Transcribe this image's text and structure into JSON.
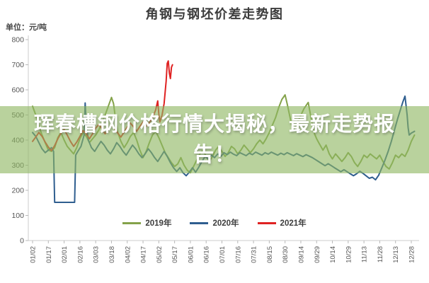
{
  "header": {
    "title": "角钢与钢坯价差走势图",
    "unit_label": "单位：元/吨"
  },
  "overlay_banner": {
    "lines": [
      "珲春槽钢价格行情大揭秘，最新走势报",
      "告！"
    ],
    "bg": "rgba(142,182,97,0.62)",
    "text_color": "#ffffff"
  },
  "chart_data": {
    "type": "line",
    "title": "角钢与钢坯价差走势图",
    "ylabel": "单位：元/吨",
    "ylim": [
      0,
      800
    ],
    "yticks": [
      0,
      100,
      200,
      300,
      400,
      500,
      600,
      700,
      800
    ],
    "xtick_labels": [
      "01/02",
      "01/17",
      "02/01",
      "02/16",
      "03/03",
      "03/18",
      "04/02",
      "04/17",
      "05/02",
      "05/17",
      "06/01",
      "06/16",
      "07/01",
      "07/16",
      "07/31",
      "08/15",
      "08/30",
      "09/14",
      "09/29",
      "10/14",
      "10/29",
      "11/13",
      "11/28",
      "12/13",
      "12/28"
    ],
    "xtick_spacing_days": 15,
    "x_range_days": [
      0,
      363
    ],
    "grid": false,
    "legend_position": "bottom",
    "series": [
      {
        "name": "2019年",
        "color": "#84a24a",
        "points": [
          [
            0,
            535
          ],
          [
            3,
            500
          ],
          [
            6,
            455
          ],
          [
            9,
            420
          ],
          [
            12,
            390
          ],
          [
            15,
            360
          ],
          [
            18,
            355
          ],
          [
            21,
            370
          ],
          [
            24,
            410
          ],
          [
            27,
            430
          ],
          [
            30,
            400
          ],
          [
            33,
            375
          ],
          [
            36,
            360
          ],
          [
            39,
            345
          ],
          [
            42,
            370
          ],
          [
            45,
            405
          ],
          [
            48,
            430
          ],
          [
            51,
            415
          ],
          [
            54,
            390
          ],
          [
            57,
            405
          ],
          [
            60,
            420
          ],
          [
            63,
            440
          ],
          [
            66,
            470
          ],
          [
            69,
            500
          ],
          [
            72,
            535
          ],
          [
            75,
            570
          ],
          [
            77,
            545
          ],
          [
            79,
            480
          ],
          [
            81,
            430
          ],
          [
            84,
            395
          ],
          [
            87,
            370
          ],
          [
            90,
            390
          ],
          [
            93,
            415
          ],
          [
            96,
            430
          ],
          [
            99,
            400
          ],
          [
            102,
            360
          ],
          [
            105,
            330
          ],
          [
            108,
            355
          ],
          [
            111,
            390
          ],
          [
            114,
            420
          ],
          [
            117,
            435
          ],
          [
            120,
            410
          ],
          [
            123,
            380
          ],
          [
            126,
            350
          ],
          [
            129,
            330
          ],
          [
            132,
            310
          ],
          [
            135,
            295
          ],
          [
            138,
            305
          ],
          [
            141,
            330
          ],
          [
            144,
            300
          ],
          [
            147,
            280
          ],
          [
            150,
            270
          ],
          [
            153,
            295
          ],
          [
            156,
            320
          ],
          [
            159,
            345
          ],
          [
            162,
            360
          ],
          [
            165,
            335
          ],
          [
            168,
            315
          ],
          [
            171,
            335
          ],
          [
            174,
            360
          ],
          [
            177,
            375
          ],
          [
            180,
            355
          ],
          [
            183,
            335
          ],
          [
            186,
            350
          ],
          [
            189,
            375
          ],
          [
            192,
            365
          ],
          [
            195,
            345
          ],
          [
            198,
            360
          ],
          [
            201,
            380
          ],
          [
            204,
            365
          ],
          [
            207,
            350
          ],
          [
            210,
            365
          ],
          [
            213,
            385
          ],
          [
            216,
            400
          ],
          [
            219,
            385
          ],
          [
            222,
            405
          ],
          [
            225,
            430
          ],
          [
            228,
            460
          ],
          [
            231,
            490
          ],
          [
            234,
            530
          ],
          [
            237,
            562
          ],
          [
            240,
            580
          ],
          [
            242,
            545
          ],
          [
            244,
            505
          ],
          [
            246,
            465
          ],
          [
            248,
            440
          ],
          [
            250,
            455
          ],
          [
            254,
            490
          ],
          [
            258,
            525
          ],
          [
            262,
            550
          ],
          [
            264,
            505
          ],
          [
            266,
            460
          ],
          [
            268,
            425
          ],
          [
            270,
            405
          ],
          [
            272,
            390
          ],
          [
            274,
            375
          ],
          [
            276,
            360
          ],
          [
            279,
            380
          ],
          [
            282,
            345
          ],
          [
            285,
            325
          ],
          [
            288,
            345
          ],
          [
            291,
            330
          ],
          [
            294,
            315
          ],
          [
            297,
            330
          ],
          [
            300,
            350
          ],
          [
            303,
            335
          ],
          [
            306,
            310
          ],
          [
            309,
            295
          ],
          [
            312,
            315
          ],
          [
            315,
            340
          ],
          [
            318,
            330
          ],
          [
            321,
            345
          ],
          [
            324,
            335
          ],
          [
            327,
            325
          ],
          [
            330,
            340
          ],
          [
            333,
            315
          ],
          [
            336,
            295
          ],
          [
            339,
            285
          ],
          [
            342,
            310
          ],
          [
            345,
            340
          ],
          [
            348,
            330
          ],
          [
            351,
            345
          ],
          [
            354,
            335
          ],
          [
            357,
            360
          ],
          [
            360,
            395
          ],
          [
            363,
            420
          ]
        ]
      },
      {
        "name": "2020年",
        "color": "#2f5e8f",
        "points": [
          [
            0,
            430
          ],
          [
            3,
            415
          ],
          [
            6,
            390
          ],
          [
            9,
            365
          ],
          [
            12,
            350
          ],
          [
            15,
            360
          ],
          [
            18,
            370
          ],
          [
            20,
            355
          ],
          [
            21,
            152
          ],
          [
            40,
            152
          ],
          [
            41,
            340
          ],
          [
            43,
            355
          ],
          [
            46,
            375
          ],
          [
            49,
            420
          ],
          [
            50,
            548
          ],
          [
            51,
            470
          ],
          [
            53,
            400
          ],
          [
            56,
            370
          ],
          [
            59,
            355
          ],
          [
            62,
            375
          ],
          [
            65,
            395
          ],
          [
            68,
            380
          ],
          [
            71,
            360
          ],
          [
            74,
            345
          ],
          [
            77,
            365
          ],
          [
            80,
            390
          ],
          [
            83,
            375
          ],
          [
            86,
            355
          ],
          [
            89,
            340
          ],
          [
            92,
            360
          ],
          [
            95,
            380
          ],
          [
            98,
            365
          ],
          [
            101,
            345
          ],
          [
            104,
            330
          ],
          [
            107,
            345
          ],
          [
            110,
            365
          ],
          [
            113,
            350
          ],
          [
            116,
            330
          ],
          [
            119,
            315
          ],
          [
            122,
            335
          ],
          [
            125,
            355
          ],
          [
            128,
            335
          ],
          [
            131,
            310
          ],
          [
            134,
            290
          ],
          [
            137,
            275
          ],
          [
            140,
            290
          ],
          [
            143,
            270
          ],
          [
            146,
            258
          ],
          [
            149,
            272
          ],
          [
            152,
            290
          ],
          [
            155,
            272
          ],
          [
            158,
            292
          ],
          [
            161,
            315
          ],
          [
            164,
            335
          ],
          [
            167,
            325
          ],
          [
            170,
            340
          ],
          [
            173,
            330
          ],
          [
            176,
            345
          ],
          [
            179,
            335
          ],
          [
            182,
            350
          ],
          [
            185,
            342
          ],
          [
            188,
            352
          ],
          [
            191,
            344
          ],
          [
            194,
            338
          ],
          [
            197,
            350
          ],
          [
            200,
            344
          ],
          [
            203,
            338
          ],
          [
            206,
            348
          ],
          [
            209,
            342
          ],
          [
            212,
            352
          ],
          [
            215,
            346
          ],
          [
            218,
            340
          ],
          [
            221,
            350
          ],
          [
            224,
            344
          ],
          [
            227,
            352
          ],
          [
            230,
            346
          ],
          [
            233,
            340
          ],
          [
            236,
            348
          ],
          [
            239,
            342
          ],
          [
            242,
            350
          ],
          [
            245,
            344
          ],
          [
            248,
            338
          ],
          [
            251,
            346
          ],
          [
            254,
            340
          ],
          [
            257,
            334
          ],
          [
            260,
            342
          ],
          [
            263,
            336
          ],
          [
            266,
            330
          ],
          [
            269,
            322
          ],
          [
            272,
            314
          ],
          [
            275,
            306
          ],
          [
            278,
            298
          ],
          [
            281,
            306
          ],
          [
            284,
            298
          ],
          [
            287,
            290
          ],
          [
            290,
            282
          ],
          [
            293,
            274
          ],
          [
            296,
            282
          ],
          [
            299,
            274
          ],
          [
            302,
            266
          ],
          [
            305,
            258
          ],
          [
            308,
            266
          ],
          [
            311,
            276
          ],
          [
            314,
            268
          ],
          [
            317,
            258
          ],
          [
            320,
            248
          ],
          [
            323,
            252
          ],
          [
            326,
            242
          ],
          [
            329,
            260
          ],
          [
            332,
            290
          ],
          [
            335,
            320
          ],
          [
            338,
            355
          ],
          [
            341,
            395
          ],
          [
            344,
            440
          ],
          [
            347,
            485
          ],
          [
            350,
            525
          ],
          [
            352,
            552
          ],
          [
            354,
            575
          ],
          [
            356,
            500
          ],
          [
            357,
            450
          ],
          [
            358,
            420
          ],
          [
            360,
            428
          ],
          [
            363,
            435
          ]
        ]
      },
      {
        "name": "2021年",
        "color": "#df2222",
        "points": [
          [
            0,
            395
          ],
          [
            3,
            412
          ],
          [
            6,
            430
          ],
          [
            9,
            415
          ],
          [
            12,
            392
          ],
          [
            15,
            372
          ],
          [
            18,
            358
          ],
          [
            21,
            378
          ],
          [
            24,
            405
          ],
          [
            27,
            428
          ],
          [
            30,
            442
          ],
          [
            33,
            420
          ],
          [
            36,
            395
          ],
          [
            39,
            375
          ],
          [
            42,
            392
          ],
          [
            45,
            415
          ],
          [
            48,
            438
          ],
          [
            51,
            425
          ],
          [
            54,
            405
          ],
          [
            57,
            425
          ],
          [
            60,
            448
          ],
          [
            63,
            462
          ],
          [
            66,
            445
          ],
          [
            69,
            425
          ],
          [
            72,
            442
          ],
          [
            75,
            460
          ],
          [
            78,
            445
          ],
          [
            81,
            428
          ],
          [
            84,
            412
          ],
          [
            87,
            432
          ],
          [
            90,
            452
          ],
          [
            93,
            468
          ],
          [
            96,
            452
          ],
          [
            99,
            435
          ],
          [
            102,
            455
          ],
          [
            105,
            472
          ],
          [
            108,
            455
          ],
          [
            111,
            470
          ],
          [
            114,
            488
          ],
          [
            117,
            520
          ],
          [
            119,
            556
          ],
          [
            120,
            505
          ],
          [
            121,
            472
          ],
          [
            123,
            498
          ],
          [
            125,
            545
          ],
          [
            127,
            635
          ],
          [
            128,
            705
          ],
          [
            129,
            715
          ],
          [
            130,
            668
          ],
          [
            131,
            645
          ],
          [
            132,
            690
          ],
          [
            133,
            700
          ]
        ]
      }
    ]
  }
}
